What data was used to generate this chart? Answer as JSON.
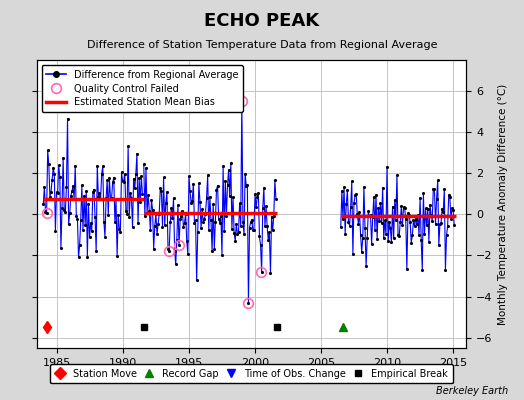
{
  "title": "ECHO PEAK",
  "subtitle": "Difference of Station Temperature Data from Regional Average",
  "ylabel": "Monthly Temperature Anomaly Difference (°C)",
  "credit": "Berkeley Earth",
  "xlim": [
    1983.5,
    2016
  ],
  "ylim": [
    -6.5,
    7.5
  ],
  "yticks": [
    -6,
    -4,
    -2,
    0,
    2,
    4,
    6
  ],
  "xticks": [
    1985,
    1990,
    1995,
    2000,
    2005,
    2010,
    2015
  ],
  "bg_color": "#d8d8d8",
  "plot_bg_color": "#ffffff",
  "grid_color": "#bbbbbb",
  "segments": [
    {
      "x_start": 1984.0,
      "x_end": 1991.6,
      "bias": 0.75
    },
    {
      "x_start": 1991.6,
      "x_end": 2001.7,
      "bias": 0.05
    },
    {
      "x_start": 2006.5,
      "x_end": 2015.2,
      "bias": -0.1
    }
  ],
  "station_move_x": 1984.3,
  "station_move_y": -5.5,
  "record_gap_x": 2006.7,
  "record_gap_y": -5.5,
  "empirical_breaks": [
    1991.6,
    2001.7
  ],
  "empirical_break_y": -5.5,
  "seed": 12345
}
